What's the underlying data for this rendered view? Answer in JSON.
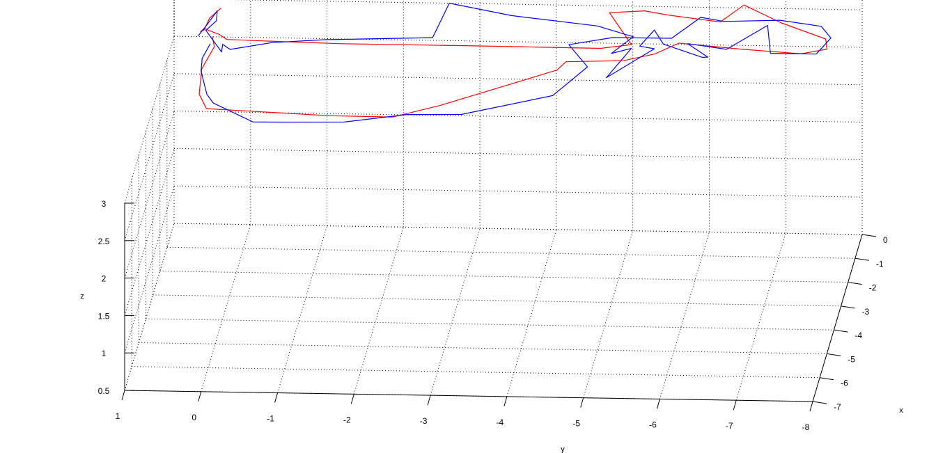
{
  "chart_data": {
    "type": "line3d",
    "title": "",
    "xlabel": "x",
    "ylabel": "y",
    "zlabel": "z",
    "xlim": [
      -7,
      0
    ],
    "ylim": [
      -8,
      1
    ],
    "zlim": [
      0.5,
      3
    ],
    "grid": true,
    "x_ticks": [
      "0",
      "-1",
      "-2",
      "-3",
      "-4",
      "-5",
      "-6",
      "-7"
    ],
    "y_ticks": [
      "1",
      "0",
      "-1",
      "-2",
      "-3",
      "-4",
      "-5",
      "-6",
      "-7",
      "-8"
    ],
    "z_ticks": [
      "0.5",
      "1",
      "1.5",
      "2",
      "2.5",
      "3"
    ],
    "series": [
      {
        "color": "#ff0000",
        "points": [
          [
            0.1,
            0.4,
            3.35
          ],
          [
            0.15,
            0.55,
            3.2
          ],
          [
            0.12,
            0.62,
            3.05
          ],
          [
            0.06,
            0.66,
            3.05
          ],
          [
            -0.04,
            0.6,
            3.12
          ],
          [
            -0.06,
            0.4,
            3.05
          ],
          [
            -0.1,
            0.3,
            3.0
          ],
          [
            -0.15,
            -0.35,
            3.0
          ],
          [
            -0.2,
            -1.2,
            3.0
          ],
          [
            -0.2,
            -3.0,
            3.0
          ],
          [
            -0.22,
            -4.6,
            3.0
          ],
          [
            -0.2,
            -5.0,
            3.05
          ],
          [
            -0.6,
            -4.75,
            3.6
          ],
          [
            -0.5,
            -5.2,
            3.6
          ],
          [
            -0.5,
            -5.5,
            3.55
          ],
          [
            -0.6,
            -6.2,
            3.5
          ],
          [
            -0.5,
            -6.5,
            3.7
          ],
          [
            -0.6,
            -7.0,
            3.5
          ],
          [
            -0.3,
            -7.55,
            3.2
          ],
          [
            -0.1,
            -7.55,
            3.0
          ],
          [
            0.0,
            -7.2,
            2.9
          ],
          [
            0.0,
            -6.4,
            2.95
          ],
          [
            0.05,
            -5.6,
            3.0
          ],
          [
            -0.1,
            -5.3,
            2.9
          ],
          [
            -0.25,
            -4.9,
            2.85
          ],
          [
            -0.8,
            -4.2,
            3.0
          ],
          [
            -1.0,
            -4.1,
            2.95
          ],
          [
            -2.4,
            -2.7,
            2.9
          ],
          [
            -2.6,
            -2.1,
            2.8
          ],
          [
            -2.9,
            -1.3,
            2.9
          ],
          [
            -3.0,
            0.3,
            3.0
          ],
          [
            -2.4,
            0.45,
            3.0
          ],
          [
            -1.5,
            0.5,
            3.05
          ],
          [
            -0.25,
            0.45,
            2.95
          ],
          [
            0.0,
            0.5,
            3.0
          ]
        ]
      },
      {
        "color": "#0000ff",
        "points": [
          [
            0.2,
            0.7,
            2.95
          ],
          [
            0.1,
            0.6,
            3.1
          ],
          [
            0.15,
            0.45,
            3.3
          ],
          [
            0.05,
            0.45,
            3.2
          ],
          [
            -0.05,
            0.58,
            3.1
          ],
          [
            0.0,
            0.38,
            2.8
          ],
          [
            -0.15,
            0.35,
            2.95
          ],
          [
            -0.2,
            0.25,
            2.9
          ],
          [
            -0.2,
            -0.3,
            3.0
          ],
          [
            -0.2,
            -1.0,
            3.05
          ],
          [
            -0.2,
            -2.4,
            3.1
          ],
          [
            0.0,
            -2.6,
            3.5
          ],
          [
            0.15,
            -3.4,
            3.3
          ],
          [
            0.4,
            -4.5,
            3.1
          ],
          [
            0.6,
            -4.95,
            2.9
          ],
          [
            0.2,
            -4.7,
            2.8
          ],
          [
            -0.2,
            -5.0,
            3.0
          ],
          [
            -0.5,
            -4.7,
            2.7
          ],
          [
            -0.2,
            -5.3,
            3.0
          ],
          [
            -0.1,
            -5.1,
            3.0
          ],
          [
            -0.2,
            -5.3,
            3.25
          ],
          [
            0.0,
            -5.4,
            3.0
          ],
          [
            0.1,
            -5.9,
            2.8
          ],
          [
            -0.2,
            -6.0,
            2.9
          ],
          [
            -0.9,
            -5.8,
            3.3
          ],
          [
            -0.8,
            -6.3,
            3.2
          ],
          [
            -0.4,
            -6.8,
            3.4
          ],
          [
            0.0,
            -6.8,
            2.9
          ],
          [
            0.0,
            -7.4,
            2.9
          ],
          [
            -0.1,
            -7.6,
            3.15
          ],
          [
            -0.4,
            -7.5,
            3.4
          ],
          [
            -0.8,
            -7.0,
            3.6
          ],
          [
            -1.2,
            -6.3,
            3.7
          ],
          [
            -1.2,
            -6.0,
            3.75
          ],
          [
            -1.0,
            -5.6,
            3.4
          ],
          [
            -0.7,
            -4.8,
            3.3
          ],
          [
            -0.4,
            -4.2,
            3.1
          ],
          [
            -1.0,
            -4.5,
            3.0
          ],
          [
            -1.6,
            -4.1,
            2.8
          ],
          [
            -2.6,
            -3.0,
            2.85
          ],
          [
            -2.8,
            -2.3,
            2.9
          ],
          [
            -3.0,
            -1.5,
            2.85
          ],
          [
            -3.2,
            -0.7,
            2.9
          ],
          [
            -2.9,
            -0.3,
            2.8
          ],
          [
            -2.6,
            0.25,
            2.95
          ],
          [
            -2.4,
            0.35,
            3.0
          ],
          [
            -1.6,
            0.5,
            3.05
          ],
          [
            -0.9,
            0.55,
            3.0
          ],
          [
            -0.3,
            0.5,
            3.0
          ]
        ]
      }
    ]
  }
}
